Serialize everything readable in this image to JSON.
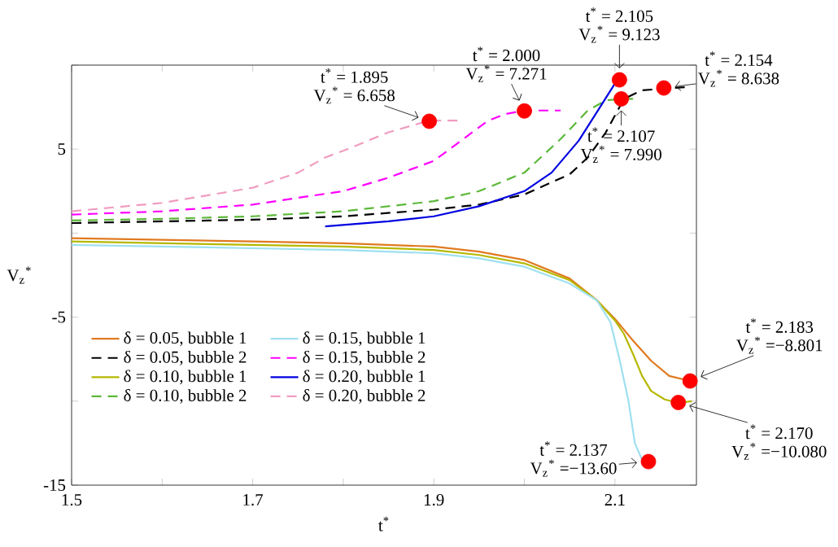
{
  "chart_data": {
    "type": "line",
    "xlabel": "t$^{*}$",
    "ylabel": "V$_{z}$$^{*}$",
    "xlim": [
      1.5,
      2.19
    ],
    "ylim": [
      -15,
      10
    ],
    "xticks": [
      1.5,
      {
        "value": 1.6,
        "label": null
      },
      1.7,
      {
        "value": 1.8,
        "label": null
      },
      1.9,
      {
        "value": 2.0,
        "label": null
      },
      2.1
    ],
    "yticks": [
      -15,
      {
        "value": -10,
        "label": null
      },
      -5,
      {
        "value": 0,
        "label": null
      },
      5,
      {
        "value": 10,
        "label": null
      }
    ],
    "legend": "left",
    "series": [
      {
        "name": "δ = 0.05, bubble 1",
        "color": "#e07a20",
        "line_style": "solid",
        "x": [
          1.5,
          1.6,
          1.7,
          1.8,
          1.9,
          1.95,
          2.0,
          2.05,
          2.08,
          2.1,
          2.12,
          2.14,
          2.16,
          2.183,
          2.19
        ],
        "values": [
          -0.3,
          -0.4,
          -0.5,
          -0.6,
          -0.8,
          -1.1,
          -1.6,
          -2.7,
          -4.0,
          -5.1,
          -6.4,
          -7.6,
          -8.5,
          -8.8,
          -8.8
        ]
      },
      {
        "name": "δ = 0.05, bubble 2",
        "color": "#000000",
        "line_style": "dashed",
        "x": [
          1.5,
          1.6,
          1.7,
          1.8,
          1.9,
          1.95,
          2.0,
          2.05,
          2.07,
          2.09,
          2.11,
          2.13,
          2.154,
          2.18
        ],
        "values": [
          0.6,
          0.7,
          0.8,
          1.0,
          1.4,
          1.7,
          2.3,
          3.5,
          4.5,
          6.0,
          8.0,
          8.5,
          8.6,
          8.7
        ]
      },
      {
        "name": "δ = 0.10, bubble 1",
        "color": "#b5b800",
        "line_style": "solid",
        "x": [
          1.5,
          1.6,
          1.7,
          1.8,
          1.9,
          1.95,
          2.0,
          2.05,
          2.08,
          2.1,
          2.11,
          2.12,
          2.13,
          2.14,
          2.155,
          2.17,
          2.185
        ],
        "values": [
          -0.5,
          -0.6,
          -0.7,
          -0.8,
          -1.0,
          -1.3,
          -1.8,
          -2.8,
          -4.0,
          -5.2,
          -6.0,
          -7.2,
          -8.5,
          -9.4,
          -9.9,
          -10.1,
          -10.0
        ]
      },
      {
        "name": "δ = 0.10, bubble 2",
        "color": "#5cb83a",
        "line_style": "dashed",
        "x": [
          1.5,
          1.6,
          1.7,
          1.8,
          1.9,
          1.95,
          2.0,
          2.04,
          2.07,
          2.09,
          2.107,
          2.12
        ],
        "values": [
          0.75,
          0.85,
          1.0,
          1.3,
          1.9,
          2.5,
          3.6,
          5.6,
          7.3,
          7.9,
          8.0,
          8.0
        ]
      },
      {
        "name": "δ = 0.15, bubble 1",
        "color": "#9ee0f0",
        "line_style": "solid",
        "x": [
          1.5,
          1.6,
          1.7,
          1.8,
          1.9,
          1.95,
          2.0,
          2.05,
          2.08,
          2.095,
          2.105,
          2.115,
          2.122,
          2.13
        ],
        "values": [
          -0.7,
          -0.8,
          -0.9,
          -1.0,
          -1.2,
          -1.5,
          -2.0,
          -3.0,
          -4.0,
          -5.3,
          -7.5,
          -10.0,
          -12.5,
          -13.5
        ]
      },
      {
        "name": "δ = 0.15, bubble 2",
        "color": "#ff00ff",
        "line_style": "dashed",
        "x": [
          1.5,
          1.6,
          1.7,
          1.8,
          1.85,
          1.9,
          1.93,
          1.96,
          1.98,
          2.0,
          2.04
        ],
        "values": [
          1.1,
          1.3,
          1.7,
          2.5,
          3.3,
          4.3,
          5.5,
          6.7,
          7.1,
          7.3,
          7.3
        ]
      },
      {
        "name": "δ = 0.20, bubble 1",
        "color": "#0000e0",
        "line_style": "solid",
        "x": [
          1.78,
          1.85,
          1.9,
          1.95,
          2.0,
          2.03,
          2.06,
          2.08,
          2.1,
          2.105
        ],
        "values": [
          0.4,
          0.7,
          1.0,
          1.6,
          2.5,
          3.6,
          5.5,
          7.2,
          8.9,
          9.1
        ]
      },
      {
        "name": "δ = 0.20, bubble 2",
        "color": "#f09cc0",
        "line_style": "dashed",
        "x": [
          1.5,
          1.6,
          1.7,
          1.75,
          1.78,
          1.8,
          1.85,
          1.895,
          1.93
        ],
        "values": [
          1.3,
          1.8,
          2.7,
          3.6,
          4.5,
          4.9,
          6.0,
          6.7,
          6.7
        ]
      },
      {
        "type": "scatter",
        "color": "#ff0000",
        "marker": "circle",
        "x": [
          1.895,
          2.0,
          2.105,
          2.107,
          2.154,
          2.183,
          2.17,
          2.137
        ],
        "values": [
          6.658,
          7.271,
          9.123,
          7.99,
          8.638,
          -8.801,
          -10.08,
          -13.6
        ]
      }
    ],
    "annotations": [
      "t$^{*}$ = 1.895",
      {
        "text": "V$_{z}$$^{*}$ = 6.658",
        "x": 1.895,
        "y": 6.658
      },
      "t$^{*}$ = 2.000",
      {
        "text": "V$_{z}$$^{*}$ = 7.271",
        "x": 2.0,
        "y": 7.271
      },
      "t$^{*}$ = 2.105",
      {
        "text": "V$_{z}$$^{*}$ = 9.123",
        "x": 2.105,
        "y": 9.123
      },
      {
        "text": "t$^{*}$ = 2.107",
        "x": 2.107,
        "y": 7.99
      },
      "V$_{z}$$^{*}$ = 7.990",
      "t$^{*}$ = 2.154",
      {
        "text": "V$_{z}$$^{*}$ = 8.638",
        "x": 2.154,
        "y": 8.638
      },
      "t$^{*}$ = 2.183",
      {
        "text": "V$_{z}$$^{*}$ =−8.801",
        "x": 2.183,
        "y": -8.801
      },
      {
        "text": "t$^{*}$ = 2.170",
        "x": 2.17,
        "y": -10.08
      },
      "V$_{z}$$^{*}$ =−10.080",
      "t$^{*}$ = 2.137",
      {
        "text": "V$_{z}$$^{*}$ =−13.60",
        "x": 2.137,
        "y": -13.6
      }
    ]
  }
}
